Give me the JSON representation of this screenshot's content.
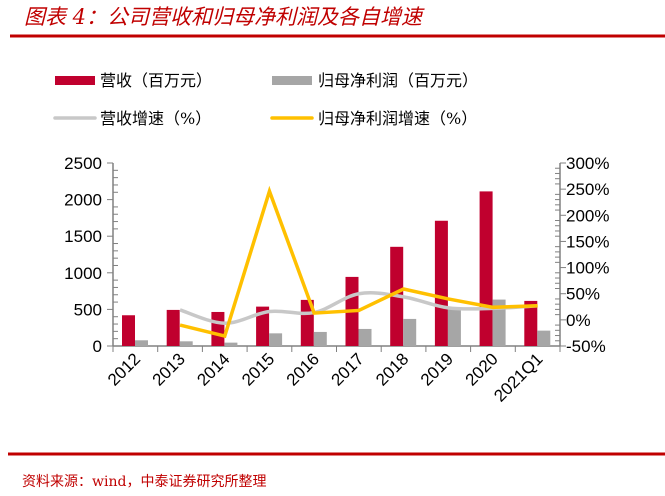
{
  "title": "图表 4：公司营收和归母净利润及各自增速",
  "source": "资料来源：wind，中泰证券研究所整理",
  "colors": {
    "title": "#c00000",
    "revenue_bar": "#c0002e",
    "profit_bar": "#a6a6a6",
    "revenue_growth_line": "#c8c8c8",
    "profit_growth_line": "#ffc000"
  },
  "chart_data": {
    "type": "bar+line",
    "categories": [
      "2012",
      "2013",
      "2014",
      "2015",
      "2016",
      "2017",
      "2018",
      "2019",
      "2020",
      "2021Q1"
    ],
    "series": [
      {
        "name": "营收（百万元）",
        "type": "bar",
        "axis": "left",
        "values": [
          420,
          493,
          465,
          538,
          630,
          944,
          1355,
          1711,
          2112,
          616
        ]
      },
      {
        "name": "归母净利润（百万元）",
        "type": "bar",
        "axis": "left",
        "values": [
          78,
          64,
          46,
          173,
          192,
          233,
          370,
          515,
          634,
          210
        ]
      },
      {
        "name": "营收增速（%）",
        "type": "line",
        "smooth": true,
        "axis": "right",
        "values": [
          null,
          19,
          -6.5,
          16,
          14,
          50,
          44,
          23,
          22,
          27
        ]
      },
      {
        "name": "归母净利润增速（%）",
        "type": "line",
        "axis": "right",
        "values": [
          null,
          -10,
          -31,
          246,
          13,
          18,
          59,
          40,
          24,
          27
        ]
      }
    ],
    "left_axis": {
      "ylim": [
        0,
        2500
      ],
      "ticks": [
        "0",
        "500",
        "1000",
        "1500",
        "2000",
        "2500"
      ]
    },
    "right_axis": {
      "ylim": [
        -50,
        300
      ],
      "ticks": [
        "-50%",
        "0%",
        "50%",
        "100%",
        "150%",
        "200%",
        "250%",
        "300%"
      ]
    },
    "legend_placement": "top",
    "grid": false
  }
}
